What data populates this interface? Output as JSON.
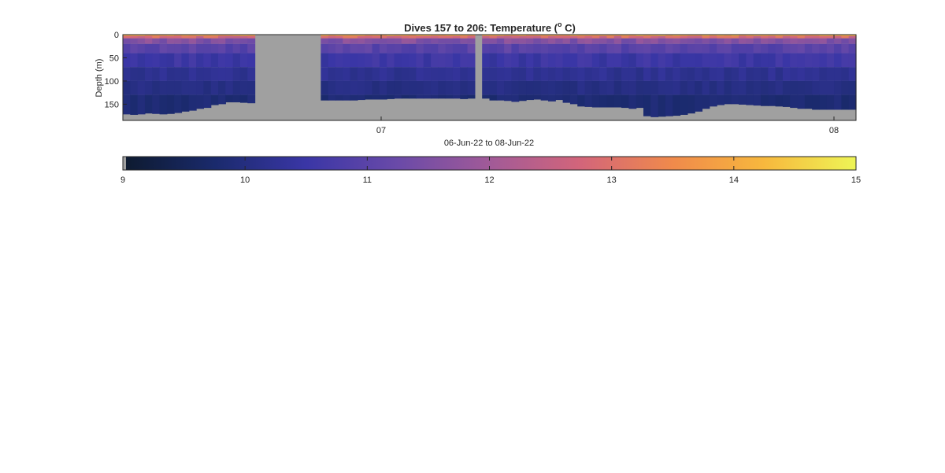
{
  "chart_data": {
    "type": "heatmap",
    "title": "Dives 157 to 206: Temperature (",
    "title_unit_superscript": "o",
    "title_unit_suffix": " C)",
    "ylabel": "Depth (m)",
    "xlabel": "06-Jun-22 to 08-Jun-22",
    "ylim": [
      0,
      185
    ],
    "y_reversed": true,
    "y_ticks": [
      0,
      50,
      100,
      150
    ],
    "x_ticks": [
      "07",
      "08"
    ],
    "colorbar": {
      "range": [
        9,
        15
      ],
      "ticks": [
        9,
        10,
        11,
        12,
        13,
        14,
        15
      ],
      "colormap": [
        "#0d1a2e",
        "#1a2a6c",
        "#3a36a6",
        "#6a4aa8",
        "#a15a98",
        "#d3657a",
        "#f08a4b",
        "#f7b83d",
        "#eef556"
      ],
      "nodata_color": "#a0a0a0"
    },
    "profiles": {
      "count": 100,
      "gap": {
        "from": 18,
        "to": 26
      },
      "spike": {
        "index": 48,
        "top_depth": 22
      },
      "bottom_depth": [
        172,
        173,
        172,
        170,
        171,
        172,
        171,
        169,
        166,
        164,
        160,
        158,
        152,
        150,
        146,
        146,
        147,
        148,
        142,
        142,
        142,
        142,
        142,
        142,
        142,
        142,
        142,
        142,
        142,
        142,
        142,
        142,
        141,
        140,
        140,
        140,
        139,
        138,
        138,
        138,
        138,
        138,
        138,
        138,
        138,
        138,
        139,
        138,
        138,
        138,
        142,
        142,
        143,
        145,
        143,
        141,
        140,
        142,
        144,
        141,
        147,
        150,
        155,
        156,
        157,
        157,
        157,
        157,
        158,
        160,
        158,
        176,
        178,
        177,
        176,
        175,
        173,
        170,
        166,
        160,
        155,
        152,
        150,
        150,
        151,
        152,
        153,
        154,
        154,
        155,
        156,
        158,
        160,
        160,
        162,
        162,
        162,
        162,
        162,
        162
      ],
      "surface_temperature": 13.6,
      "mid_temperature": 10.4,
      "deep_temperature": 9.9
    }
  }
}
